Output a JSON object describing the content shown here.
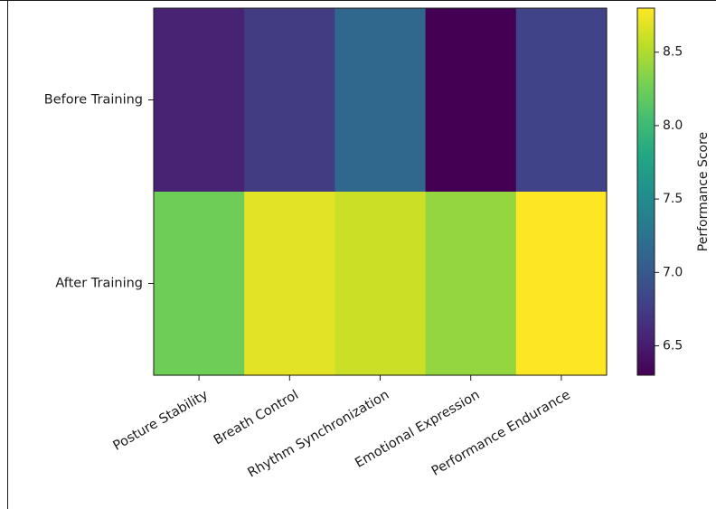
{
  "chart_data": {
    "type": "heatmap",
    "title": "",
    "xlabel": "",
    "ylabel": "",
    "x_categories": [
      "Posture Stability",
      "Breath Control",
      "Rhythm Synchronization",
      "Emotional Expression",
      "Performance Endurance"
    ],
    "y_categories": [
      "Before Training",
      "After Training"
    ],
    "values": [
      [
        6.55,
        6.75,
        7.15,
        6.3,
        6.8
      ],
      [
        8.25,
        8.7,
        8.6,
        8.4,
        8.8
      ]
    ],
    "colormap": "viridis",
    "colorbar": {
      "label": "Performance Score",
      "range": [
        6.3,
        8.8
      ],
      "ticks": [
        6.5,
        7.0,
        7.5,
        8.0,
        8.5
      ],
      "tick_labels": [
        "6.5",
        "7.0",
        "7.5",
        "8.0",
        "8.5"
      ]
    },
    "grid": false
  }
}
